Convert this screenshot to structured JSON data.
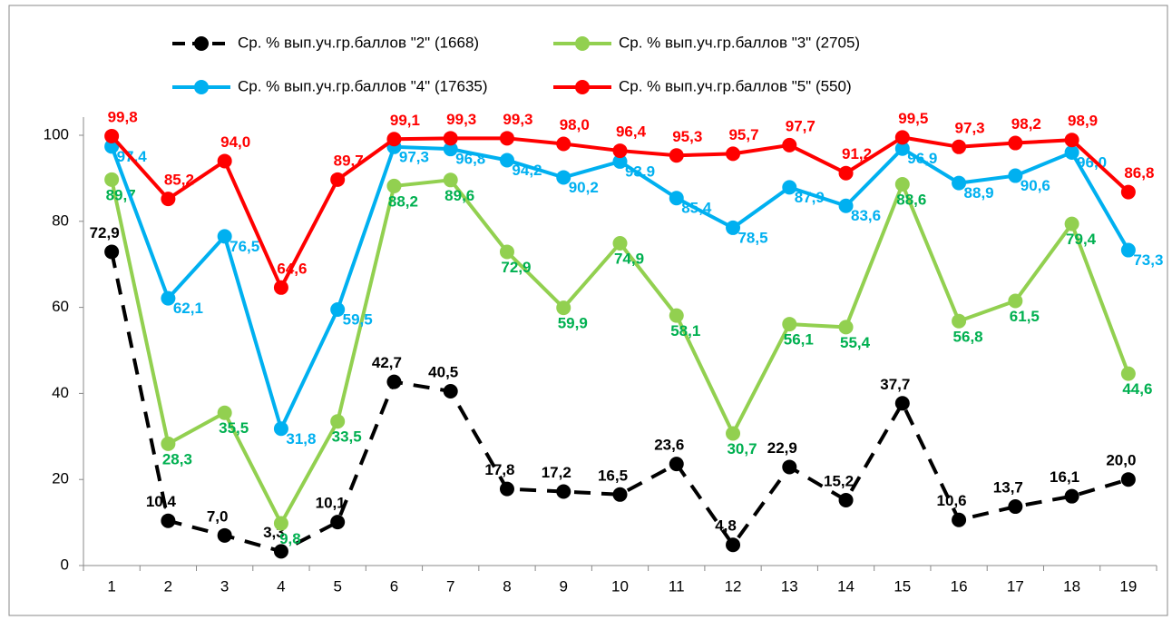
{
  "chart_data": {
    "type": "line",
    "categories": [
      "1",
      "2",
      "3",
      "4",
      "5",
      "6",
      "7",
      "8",
      "9",
      "10",
      "11",
      "12",
      "13",
      "14",
      "15",
      "16",
      "17",
      "18",
      "19"
    ],
    "ylim": [
      0,
      100
    ],
    "yticks": [
      0,
      20,
      40,
      60,
      80,
      100
    ],
    "series": [
      {
        "name": "Ср. % вып.уч.гр.баллов \"2\" (1668)",
        "color": "#000000",
        "dashed": true,
        "values": [
          72.9,
          10.4,
          7.0,
          3.3,
          10.1,
          42.7,
          40.5,
          17.8,
          17.2,
          16.5,
          23.6,
          4.8,
          22.9,
          15.2,
          37.7,
          10.6,
          13.7,
          16.1,
          20.0
        ],
        "value_labels": [
          "72,9",
          "10,4",
          "7,0",
          "3,3",
          "10,1",
          "42,7",
          "40,5",
          "17,8",
          "17,2",
          "16,5",
          "23,6",
          "4,8",
          "22,9",
          "15,2",
          "37,7",
          "10,6",
          "13,7",
          "16,1",
          "20,0"
        ]
      },
      {
        "name": "Ср. % вып.уч.гр.баллов \"3\" (2705)",
        "color": "#92d050",
        "dashed": false,
        "values": [
          89.7,
          28.3,
          35.5,
          9.8,
          33.5,
          88.2,
          89.6,
          72.9,
          59.9,
          74.9,
          58.1,
          30.7,
          56.1,
          55.4,
          88.6,
          56.8,
          61.5,
          79.4,
          44.6
        ],
        "value_labels": [
          "89,7",
          "28,3",
          "35,5",
          "9,8",
          "33,5",
          "88,2",
          "89,6",
          "72,9",
          "59,9",
          "74,9",
          "58,1",
          "30,7",
          "56,1",
          "55,4",
          "88,6",
          "56,8",
          "61,5",
          "79,4",
          "44,6"
        ]
      },
      {
        "name": "Ср. % вып.уч.гр.баллов \"4\" (17635)",
        "color": "#00b0f0",
        "dashed": false,
        "values": [
          97.4,
          62.1,
          76.5,
          31.8,
          59.5,
          97.3,
          96.8,
          94.2,
          90.2,
          93.9,
          85.4,
          78.5,
          87.9,
          83.6,
          96.9,
          88.9,
          90.6,
          96.0,
          73.3
        ],
        "value_labels": [
          "97,4",
          "62,1",
          "76,5",
          "31,8",
          "59,5",
          "97,3",
          "96,8",
          "94,2",
          "90,2",
          "93,9",
          "85,4",
          "78,5",
          "87,9",
          "83,6",
          "96,9",
          "88,9",
          "90,6",
          "96,0",
          "73,3"
        ]
      },
      {
        "name": "Ср. % вып.уч.гр.баллов \"5\" (550)",
        "color": "#ff0000",
        "dashed": false,
        "values": [
          99.8,
          85.2,
          94.0,
          64.6,
          89.7,
          99.1,
          99.3,
          99.3,
          98.0,
          96.4,
          95.3,
          95.7,
          97.7,
          91.2,
          99.5,
          97.3,
          98.2,
          98.9,
          86.8
        ],
        "value_labels": [
          "99,8",
          "85,2",
          "94,0",
          "64,6",
          "89,7",
          "99,1",
          "99,3",
          "99,3",
          "98,0",
          "96,4",
          "95,3",
          "95,7",
          "97,7",
          "91,2",
          "99,5",
          "97,3",
          "98,2",
          "98,9",
          "86,8"
        ]
      }
    ]
  }
}
